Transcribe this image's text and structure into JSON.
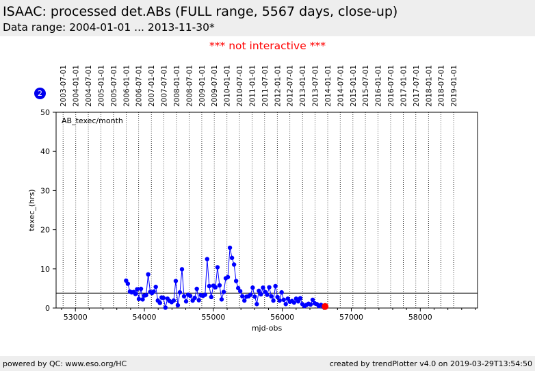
{
  "header": {
    "title": "ISAAC: processed det.ABs (FULL range, 5567 days, close-up)",
    "subtitle": "Data range: 2004-01-01 ... 2013-11-30*"
  },
  "notice": "*** not interactive ***",
  "badge": "2",
  "footer": {
    "left": "powered by QC: www.eso.org/HC",
    "right": "created by trendPlotter v4.0 on 2019-03-29T13:54:50"
  },
  "colors": {
    "points": "#0000ff",
    "last_point": "#ff0000",
    "header_bg": "#eeeeee",
    "notice": "#ff0000"
  },
  "chart_data": {
    "type": "line",
    "annotation": "AB_texec/month",
    "xlabel": "mjd-obs",
    "ylabel": "texec_(hrs)",
    "xlim": [
      52720,
      58830
    ],
    "ylim": [
      0,
      50
    ],
    "x_ticks": [
      53000,
      54000,
      55000,
      56000,
      57000,
      58000
    ],
    "x_tick_labels": [
      "53000",
      "54000",
      "55000",
      "56000",
      "57000",
      "58000"
    ],
    "y_ticks": [
      0,
      10,
      20,
      30,
      40,
      50
    ],
    "y_tick_labels": [
      "0",
      "10",
      "20",
      "30",
      "40",
      "50"
    ],
    "reference_line_y": 3.8,
    "top_axis_dates": [
      {
        "label": "2003-07-01",
        "mjd": 52821
      },
      {
        "label": "2004-01-01",
        "mjd": 53005
      },
      {
        "label": "2004-07-01",
        "mjd": 53187
      },
      {
        "label": "2005-01-01",
        "mjd": 53371
      },
      {
        "label": "2005-07-01",
        "mjd": 53552
      },
      {
        "label": "2006-01-01",
        "mjd": 53736
      },
      {
        "label": "2006-07-01",
        "mjd": 53917
      },
      {
        "label": "2007-01-01",
        "mjd": 54101
      },
      {
        "label": "2007-07-01",
        "mjd": 54282
      },
      {
        "label": "2008-01-01",
        "mjd": 54466
      },
      {
        "label": "2008-07-01",
        "mjd": 54648
      },
      {
        "label": "2009-01-01",
        "mjd": 54832
      },
      {
        "label": "2009-07-01",
        "mjd": 55013
      },
      {
        "label": "2010-01-01",
        "mjd": 55197
      },
      {
        "label": "2010-07-01",
        "mjd": 55378
      },
      {
        "label": "2011-01-01",
        "mjd": 55562
      },
      {
        "label": "2011-07-01",
        "mjd": 55743
      },
      {
        "label": "2012-01-01",
        "mjd": 55927
      },
      {
        "label": "2012-07-01",
        "mjd": 56109
      },
      {
        "label": "2013-01-01",
        "mjd": 56293
      },
      {
        "label": "2013-07-01",
        "mjd": 56474
      },
      {
        "label": "2014-01-01",
        "mjd": 56658
      },
      {
        "label": "2014-07-01",
        "mjd": 56839
      },
      {
        "label": "2015-01-01",
        "mjd": 57023
      },
      {
        "label": "2015-07-01",
        "mjd": 57204
      },
      {
        "label": "2016-01-01",
        "mjd": 57388
      },
      {
        "label": "2016-07-01",
        "mjd": 57570
      },
      {
        "label": "2017-01-01",
        "mjd": 57754
      },
      {
        "label": "2017-07-01",
        "mjd": 57935
      },
      {
        "label": "2018-01-01",
        "mjd": 58119
      },
      {
        "label": "2018-07-01",
        "mjd": 58300
      },
      {
        "label": "2019-01-01",
        "mjd": 58484
      }
    ],
    "series": [
      {
        "x": [
          53735,
          53760,
          53790,
          53815,
          53845,
          53870,
          53895,
          53920,
          53950,
          53975,
          54000,
          54025,
          54055,
          54085,
          54110,
          54135,
          54165,
          54195,
          54225,
          54250,
          54275,
          54305,
          54335,
          54365,
          54395,
          54425,
          54455,
          54485,
          54515,
          54545,
          54575,
          54605,
          54635,
          54665,
          54700,
          54730,
          54760,
          54790,
          54820,
          54850,
          54880,
          54910,
          54940,
          54970,
          55000,
          55030,
          55060,
          55090,
          55120,
          55150,
          55180,
          55210,
          55240,
          55270,
          55300,
          55330,
          55360,
          55390,
          55420,
          55450,
          55480,
          55510,
          55540,
          55570,
          55600,
          55630,
          55660,
          55690,
          55720,
          55750,
          55780,
          55810,
          55840,
          55870,
          55900,
          55930,
          55960,
          55990,
          56020,
          56050,
          56080,
          56110,
          56140,
          56170,
          56200,
          56230,
          56260,
          56290,
          56320,
          56350,
          56380,
          56410,
          56440,
          56470,
          56500,
          56530,
          56560,
          56590,
          56620
        ],
        "y": [
          7.0,
          6.2,
          4.2,
          4.0,
          4.1,
          3.6,
          4.8,
          2.3,
          4.9,
          2.2,
          3.2,
          3.3,
          8.6,
          4.1,
          3.8,
          4.2,
          5.4,
          1.9,
          1.3,
          2.7,
          2.6,
          0.1,
          2.4,
          1.8,
          1.5,
          1.9,
          6.9,
          0.7,
          4.0,
          9.9,
          3.0,
          1.7,
          3.4,
          3.1,
          1.9,
          2.6,
          4.9,
          2.0,
          3.3,
          3.1,
          3.4,
          12.5,
          5.6,
          2.8,
          5.7,
          5.3,
          10.4,
          5.8,
          2.2,
          4.1,
          7.6,
          7.9,
          15.4,
          12.8,
          11.1,
          6.9,
          5.1,
          4.3,
          3.0,
          1.9,
          2.9,
          3.0,
          3.4,
          5.2,
          2.9,
          1.0,
          4.4,
          3.5,
          5.2,
          4.1,
          3.4,
          5.3,
          3.0,
          1.9,
          5.6,
          2.8,
          1.9,
          4.0,
          2.1,
          1.0,
          2.4,
          1.6,
          1.8,
          1.4,
          2.4,
          1.7,
          2.5,
          1.0,
          0.5,
          0.8,
          1.1,
          0.9,
          2.1,
          1.2,
          1.0,
          0.5,
          0.8,
          0.3,
          0.4
        ]
      }
    ]
  }
}
